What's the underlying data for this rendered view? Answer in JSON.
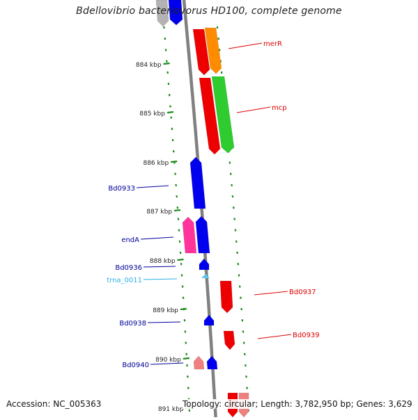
{
  "title": "Bdellovibrio bacteriovorus HD100, complete genome",
  "footer": {
    "accession": "Accession: NC_005363",
    "summary": "Topology: circular; Length: 3,782,950 bp; Genes: 3,629"
  },
  "colors": {
    "backbone": "#808080",
    "tick": "#1a8a1a",
    "forward_label": "#dd0000",
    "reverse_label": "#00009a",
    "trna_label": "#2ab0e6"
  },
  "ticks": [
    {
      "label": "884 kbp"
    },
    {
      "label": "885 kbp"
    },
    {
      "label": "886 kbp"
    },
    {
      "label": "887 kbp"
    },
    {
      "label": "888 kbp"
    },
    {
      "label": "889 kbp"
    },
    {
      "label": "890 kbp"
    },
    {
      "label": "891 kbp"
    }
  ],
  "feature_labels": [
    {
      "text": "merR",
      "strand": "forward"
    },
    {
      "text": "mcp",
      "strand": "forward"
    },
    {
      "text": "Bd0933",
      "strand": "reverse"
    },
    {
      "text": "endA",
      "strand": "reverse"
    },
    {
      "text": "Bd0936",
      "strand": "reverse"
    },
    {
      "text": "trna_0011",
      "strand": "trna"
    },
    {
      "text": "Bd0937",
      "strand": "forward"
    },
    {
      "text": "Bd0938",
      "strand": "reverse"
    },
    {
      "text": "Bd0939",
      "strand": "forward"
    },
    {
      "text": "Bd0940",
      "strand": "reverse"
    }
  ]
}
